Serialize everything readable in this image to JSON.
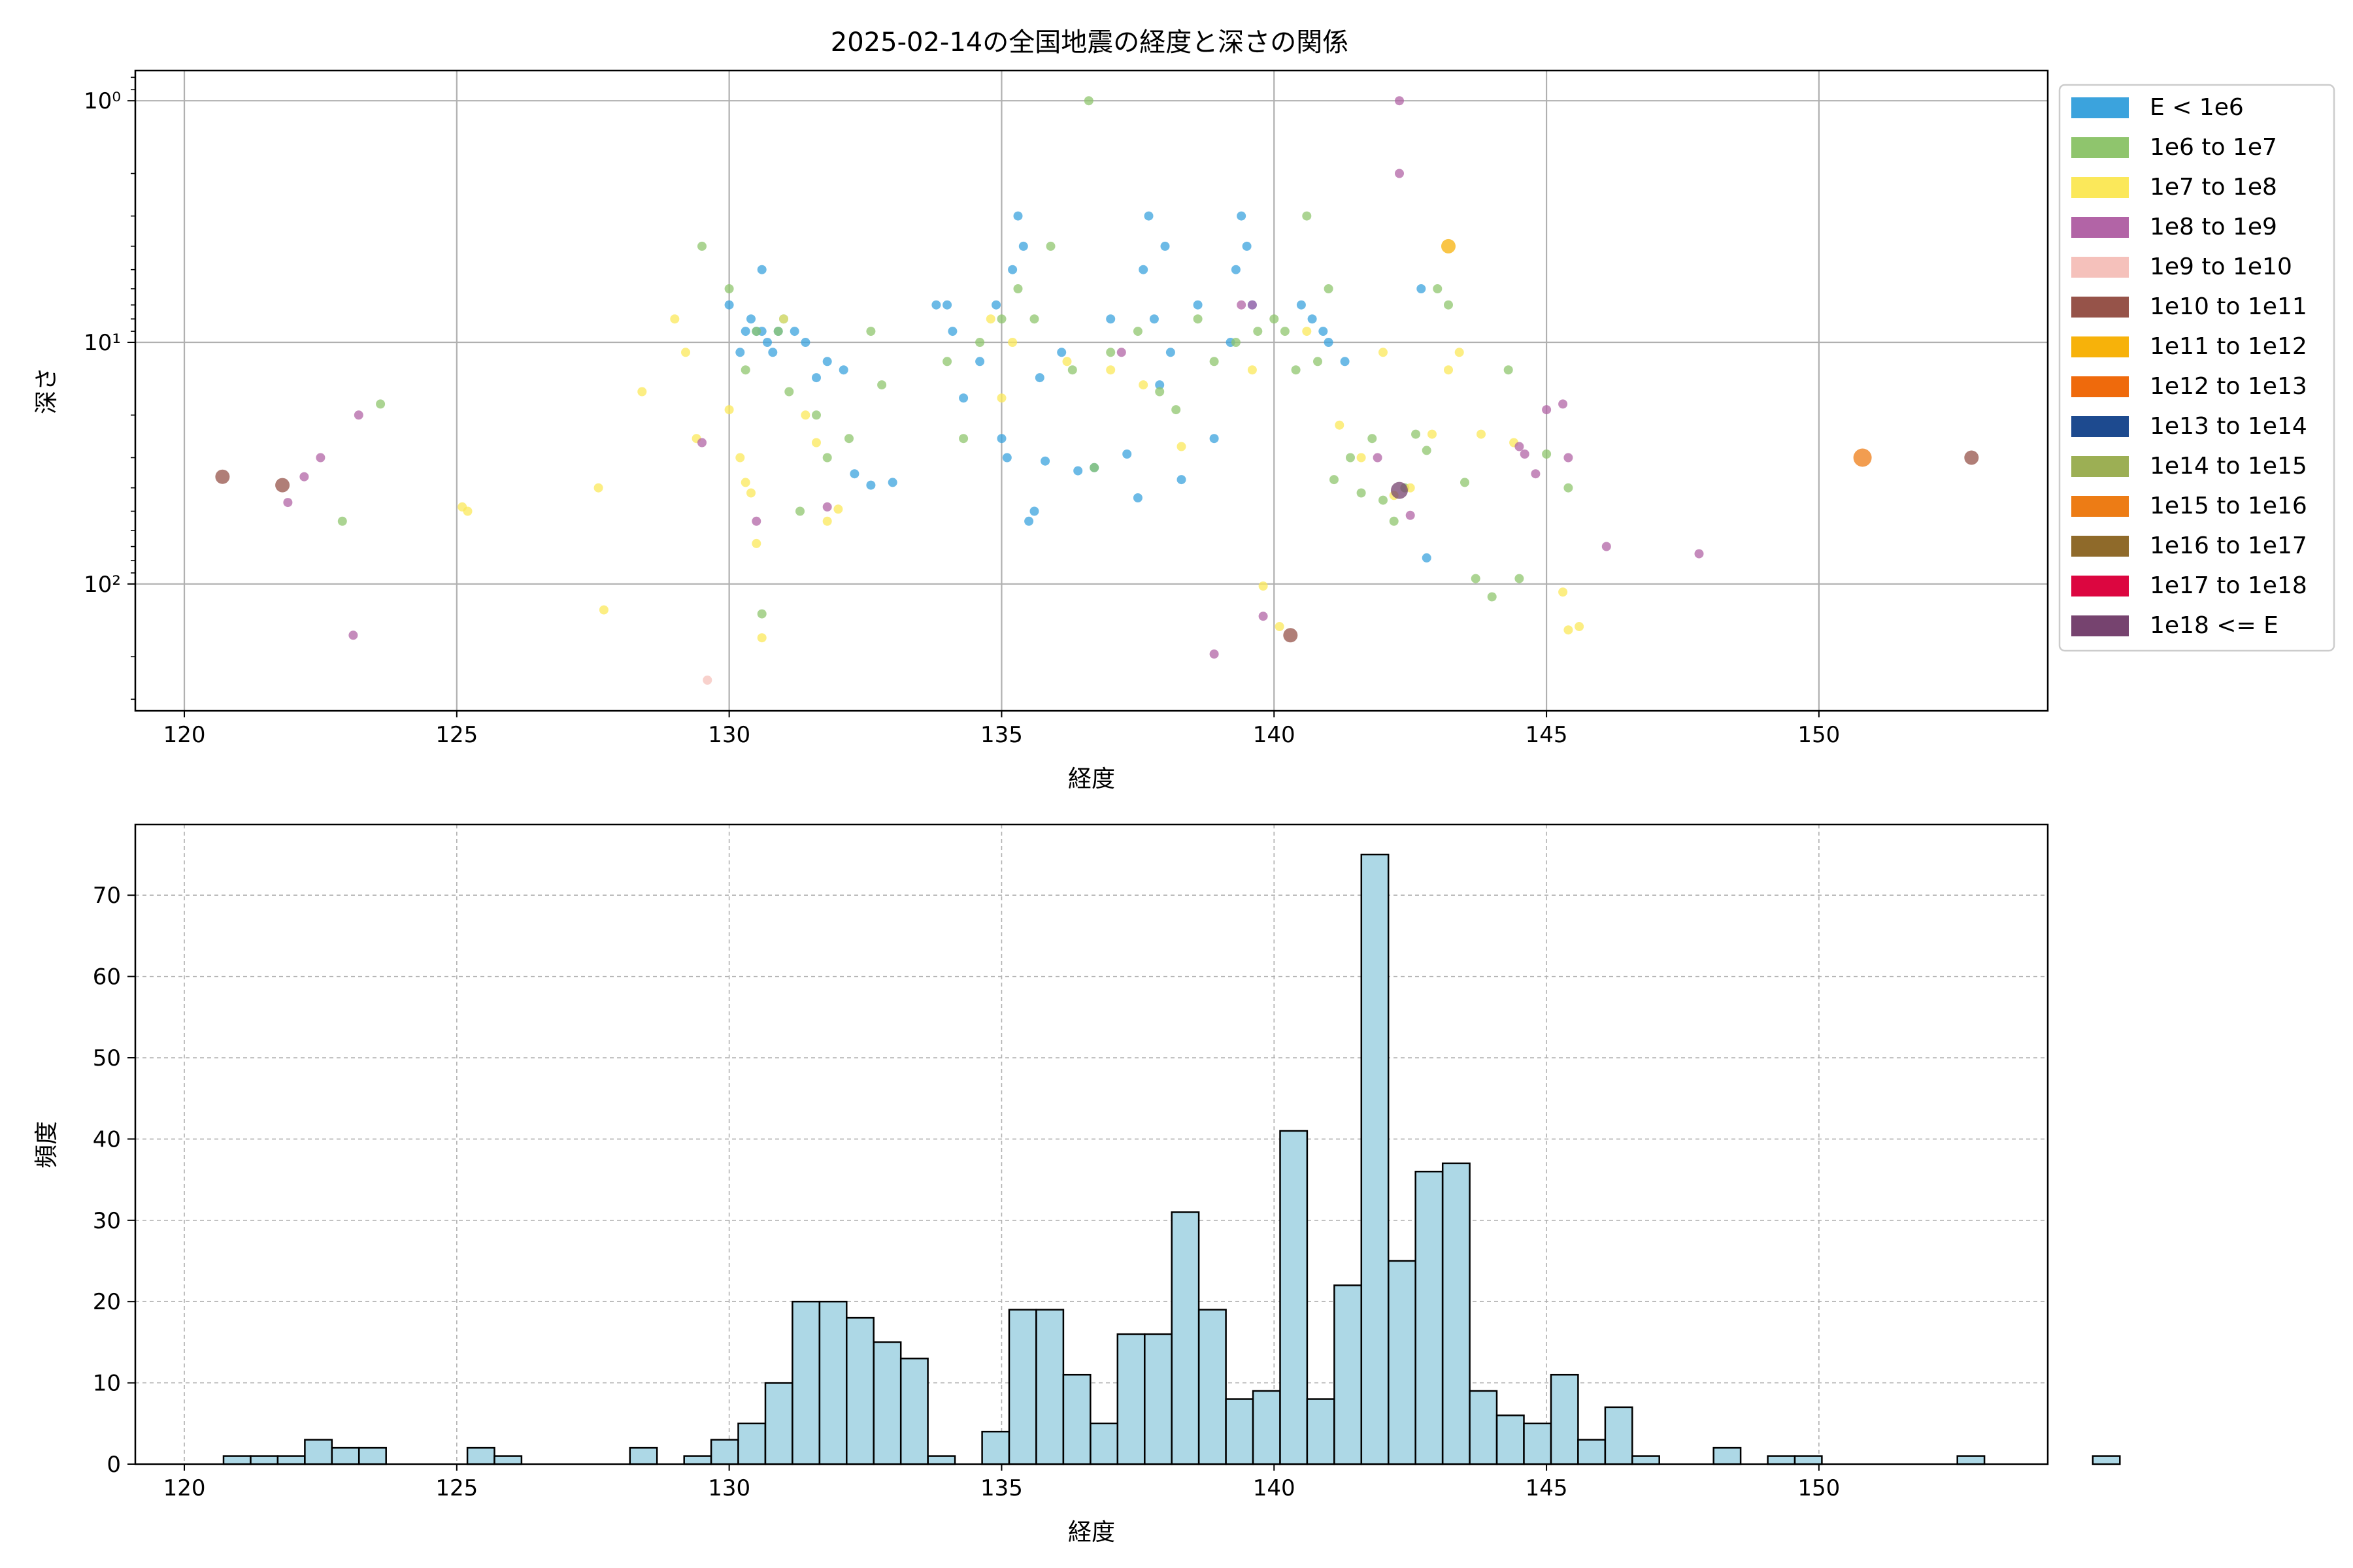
{
  "chart_data": [
    {
      "type": "scatter",
      "title": "2025-02-14の全国地震の経度と深さの関係",
      "xlabel": "経度",
      "ylabel": "深さ",
      "xlim": [
        119.1,
        154.2
      ],
      "ylim": [
        335,
        0.75
      ],
      "xticks": [
        120,
        125,
        130,
        135,
        140,
        145,
        150
      ],
      "xtick_labels": [
        "120",
        "125",
        "130",
        "135",
        "140",
        "145",
        "150"
      ],
      "yscale": "log",
      "yaxis_inverted": true,
      "yticks": [
        1,
        10,
        100
      ],
      "ytick_labels": [
        "10⁰",
        "10¹",
        "10²"
      ],
      "grid": true,
      "legend_position": "outside-right",
      "legend": [
        {
          "label": "E < 1e6",
          "color": "#3ba3dd"
        },
        {
          "label": "1e6 to 1e7",
          "color": "#8fc56d"
        },
        {
          "label": "1e7 to 1e8",
          "color": "#fbe85a"
        },
        {
          "label": "1e8 to 1e9",
          "color": "#b264a6"
        },
        {
          "label": "1e9 to 1e10",
          "color": "#f5c1bb"
        },
        {
          "label": "1e10 to 1e11",
          "color": "#965349"
        },
        {
          "label": "1e11 to 1e12",
          "color": "#f7b20a"
        },
        {
          "label": "1e12 to 1e13",
          "color": "#ef6a0c"
        },
        {
          "label": "1e13 to 1e14",
          "color": "#1d4a8f"
        },
        {
          "label": "1e14 to 1e15",
          "color": "#9caf54"
        },
        {
          "label": "1e15 to 1e16",
          "color": "#ed7c15"
        },
        {
          "label": "1e16 to 1e17",
          "color": "#8f6a2a"
        },
        {
          "label": "1e17 to 1e18",
          "color": "#dc0640"
        },
        {
          "label": "1e18 <= E",
          "color": "#76436f"
        }
      ],
      "series": [
        {
          "name": "E < 1e6",
          "points": [
            [
              130.0,
              7
            ],
            [
              130.2,
              11
            ],
            [
              130.3,
              9
            ],
            [
              130.4,
              8
            ],
            [
              130.5,
              9
            ],
            [
              130.6,
              5
            ],
            [
              130.6,
              9
            ],
            [
              130.7,
              10
            ],
            [
              130.8,
              11
            ],
            [
              130.9,
              9
            ],
            [
              131.0,
              8
            ],
            [
              131.2,
              9
            ],
            [
              131.4,
              10
            ],
            [
              131.6,
              14
            ],
            [
              131.8,
              12
            ],
            [
              132.1,
              13
            ],
            [
              132.3,
              35
            ],
            [
              132.6,
              39
            ],
            [
              133.0,
              38
            ],
            [
              133.8,
              7
            ],
            [
              134.0,
              7
            ],
            [
              134.1,
              9
            ],
            [
              134.3,
              17
            ],
            [
              134.6,
              12
            ],
            [
              134.9,
              7
            ],
            [
              135.0,
              25
            ],
            [
              135.1,
              30
            ],
            [
              135.2,
              5
            ],
            [
              135.3,
              3
            ],
            [
              135.4,
              4
            ],
            [
              135.5,
              55
            ],
            [
              135.6,
              50
            ],
            [
              135.7,
              14
            ],
            [
              135.8,
              31
            ],
            [
              136.1,
              11
            ],
            [
              136.4,
              34
            ],
            [
              136.7,
              33
            ],
            [
              137.0,
              8
            ],
            [
              137.3,
              29
            ],
            [
              137.5,
              44
            ],
            [
              137.6,
              5
            ],
            [
              137.7,
              3
            ],
            [
              137.8,
              8
            ],
            [
              137.9,
              15
            ],
            [
              138.0,
              4
            ],
            [
              138.1,
              11
            ],
            [
              138.3,
              37
            ],
            [
              138.6,
              7
            ],
            [
              138.9,
              25
            ],
            [
              139.2,
              10
            ],
            [
              139.3,
              5
            ],
            [
              139.4,
              3
            ],
            [
              139.5,
              4
            ],
            [
              139.6,
              7
            ],
            [
              140.5,
              7
            ],
            [
              140.7,
              8
            ],
            [
              140.9,
              9
            ],
            [
              141.0,
              10
            ],
            [
              141.3,
              12
            ],
            [
              142.7,
              6
            ],
            [
              142.8,
              78
            ]
          ]
        },
        {
          "name": "1e6 to 1e7",
          "points": [
            [
              122.9,
              55
            ],
            [
              123.6,
              18
            ],
            [
              129.5,
              4
            ],
            [
              130.0,
              6
            ],
            [
              130.3,
              13
            ],
            [
              130.5,
              9
            ],
            [
              130.6,
              133
            ],
            [
              130.9,
              9
            ],
            [
              131.1,
              16
            ],
            [
              131.3,
              50
            ],
            [
              131.6,
              20
            ],
            [
              131.8,
              30
            ],
            [
              132.2,
              25
            ],
            [
              132.6,
              9
            ],
            [
              132.8,
              15
            ],
            [
              134.0,
              12
            ],
            [
              134.3,
              25
            ],
            [
              134.6,
              10
            ],
            [
              135.0,
              8
            ],
            [
              135.3,
              6
            ],
            [
              135.6,
              8
            ],
            [
              135.9,
              4
            ],
            [
              136.3,
              13
            ],
            [
              136.6,
              1
            ],
            [
              136.7,
              33
            ],
            [
              137.0,
              11
            ],
            [
              137.5,
              9
            ],
            [
              137.9,
              16
            ],
            [
              138.2,
              19
            ],
            [
              138.6,
              8
            ],
            [
              138.9,
              12
            ],
            [
              139.3,
              10
            ],
            [
              139.7,
              9
            ],
            [
              140.0,
              8
            ],
            [
              140.2,
              9
            ],
            [
              140.4,
              13
            ],
            [
              140.6,
              3
            ],
            [
              140.8,
              12
            ],
            [
              141.0,
              6
            ],
            [
              141.1,
              37
            ],
            [
              141.4,
              30
            ],
            [
              141.6,
              42
            ],
            [
              141.8,
              25
            ],
            [
              142.0,
              45
            ],
            [
              142.2,
              55
            ],
            [
              142.4,
              40
            ],
            [
              142.6,
              24
            ],
            [
              142.8,
              28
            ],
            [
              143.0,
              6
            ],
            [
              143.2,
              7
            ],
            [
              143.5,
              38
            ],
            [
              143.7,
              95
            ],
            [
              144.0,
              113
            ],
            [
              144.3,
              13
            ],
            [
              144.5,
              95
            ],
            [
              145.0,
              29
            ],
            [
              145.4,
              40
            ]
          ]
        },
        {
          "name": "1e7 to 1e8",
          "points": [
            [
              125.1,
              48
            ],
            [
              125.2,
              50
            ],
            [
              127.6,
              40
            ],
            [
              127.7,
              128
            ],
            [
              128.4,
              16
            ],
            [
              129.0,
              8
            ],
            [
              129.2,
              11
            ],
            [
              129.4,
              25
            ],
            [
              130.0,
              19
            ],
            [
              130.2,
              30
            ],
            [
              130.3,
              38
            ],
            [
              130.4,
              42
            ],
            [
              130.5,
              68
            ],
            [
              130.6,
              167
            ],
            [
              131.0,
              8
            ],
            [
              131.4,
              20
            ],
            [
              131.6,
              26
            ],
            [
              131.8,
              55
            ],
            [
              132.0,
              49
            ],
            [
              134.8,
              8
            ],
            [
              135.0,
              17
            ],
            [
              135.2,
              10
            ],
            [
              136.2,
              12
            ],
            [
              137.0,
              13
            ],
            [
              137.6,
              15
            ],
            [
              138.3,
              27
            ],
            [
              139.6,
              13
            ],
            [
              139.8,
              102
            ],
            [
              140.1,
              150
            ],
            [
              140.6,
              9
            ],
            [
              141.2,
              22
            ],
            [
              141.6,
              30
            ],
            [
              142.0,
              11
            ],
            [
              142.2,
              43
            ],
            [
              142.5,
              40
            ],
            [
              142.9,
              24
            ],
            [
              143.2,
              13
            ],
            [
              143.4,
              11
            ],
            [
              143.8,
              24
            ],
            [
              144.4,
              26
            ],
            [
              145.3,
              108
            ],
            [
              145.4,
              155
            ],
            [
              145.6,
              150
            ]
          ]
        },
        {
          "name": "1e8 to 1e9",
          "points": [
            [
              121.9,
              46
            ],
            [
              122.2,
              36
            ],
            [
              122.5,
              30
            ],
            [
              123.2,
              20
            ],
            [
              123.1,
              163
            ],
            [
              129.5,
              26
            ],
            [
              130.5,
              55
            ],
            [
              131.8,
              48
            ],
            [
              137.2,
              11
            ],
            [
              138.9,
              195
            ],
            [
              139.4,
              7
            ],
            [
              139.6,
              7
            ],
            [
              139.8,
              136
            ],
            [
              141.9,
              30
            ],
            [
              142.3,
              1
            ],
            [
              142.3,
              2
            ],
            [
              142.5,
              52
            ],
            [
              144.5,
              27
            ],
            [
              144.6,
              29
            ],
            [
              144.8,
              35
            ],
            [
              145.0,
              19
            ],
            [
              145.3,
              18
            ],
            [
              145.4,
              30
            ],
            [
              146.1,
              70
            ],
            [
              147.8,
              75
            ]
          ]
        },
        {
          "name": "1e9 to 1e10",
          "points": [
            [
              129.6,
              250
            ]
          ]
        },
        {
          "name": "1e10 to 1e11",
          "points": [
            [
              120.7,
              36
            ],
            [
              121.8,
              39
            ],
            [
              140.3,
              163
            ],
            [
              152.8,
              30
            ]
          ]
        },
        {
          "name": "1e11 to 1e12",
          "points": [
            [
              143.2,
              4
            ]
          ]
        },
        {
          "name": "1e15 to 1e16",
          "points": [
            [
              150.8,
              30
            ]
          ]
        },
        {
          "name": "1e18 <= E",
          "points": [
            [
              142.3,
              41
            ]
          ]
        }
      ]
    },
    {
      "type": "bar",
      "title": "",
      "xlabel": "経度",
      "ylabel": "頻度",
      "xlim": [
        119.1,
        154.2
      ],
      "ylim": [
        0,
        78.7
      ],
      "xticks": [
        120,
        125,
        130,
        135,
        140,
        145,
        150
      ],
      "xtick_labels": [
        "120",
        "125",
        "130",
        "135",
        "140",
        "145",
        "150"
      ],
      "yticks": [
        0,
        10,
        20,
        30,
        40,
        50,
        60,
        70
      ],
      "ytick_labels": [
        "0",
        "10",
        "20",
        "30",
        "40",
        "50",
        "60",
        "70"
      ],
      "grid": true,
      "bar_color": "#add8e6",
      "edge_color": "#000000",
      "bin_start": 120.72,
      "bin_width": 0.4972,
      "counts": [
        1,
        1,
        1,
        3,
        2,
        2,
        0,
        0,
        0,
        2,
        1,
        0,
        0,
        0,
        0,
        2,
        0,
        1,
        3,
        5,
        10,
        20,
        20,
        18,
        15,
        13,
        1,
        0,
        4,
        19,
        19,
        11,
        5,
        16,
        16,
        31,
        19,
        8,
        9,
        41,
        8,
        22,
        75,
        25,
        36,
        37,
        9,
        6,
        5,
        11,
        3,
        7,
        1,
        0,
        0,
        2,
        0,
        1,
        1,
        0,
        0,
        0,
        0,
        0,
        1,
        0,
        0,
        0,
        0,
        1
      ]
    }
  ]
}
